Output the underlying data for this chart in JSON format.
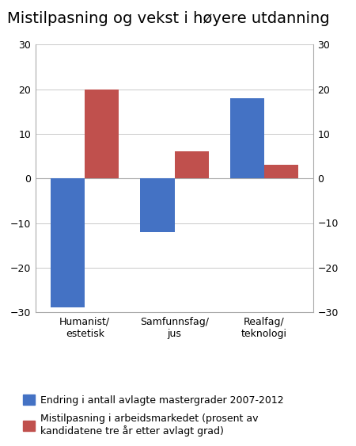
{
  "title": "Mistilpasning og vekst i høyere utdanning",
  "categories": [
    "Humanist/\nestetisk",
    "Samfunnsfag/\njus",
    "Realfag/\nteknologi"
  ],
  "blue_values": [
    -29,
    -12,
    18
  ],
  "red_values": [
    20,
    6,
    3
  ],
  "blue_color": "#4472C4",
  "red_color": "#C0504D",
  "ylim": [
    -30,
    30
  ],
  "yticks": [
    -30,
    -20,
    -10,
    0,
    10,
    20,
    30
  ],
  "legend_blue": "Endring i antall avlagte mastergrader 2007-2012",
  "legend_red": "Mistilpasning i arbeidsmarkedet (prosent av\nkandidatene tre år etter avlagt grad)",
  "background_color": "#ffffff",
  "grid_color": "#c0c0c0",
  "spine_color": "#aaaaaa",
  "title_fontsize": 14,
  "tick_fontsize": 9,
  "legend_fontsize": 9
}
